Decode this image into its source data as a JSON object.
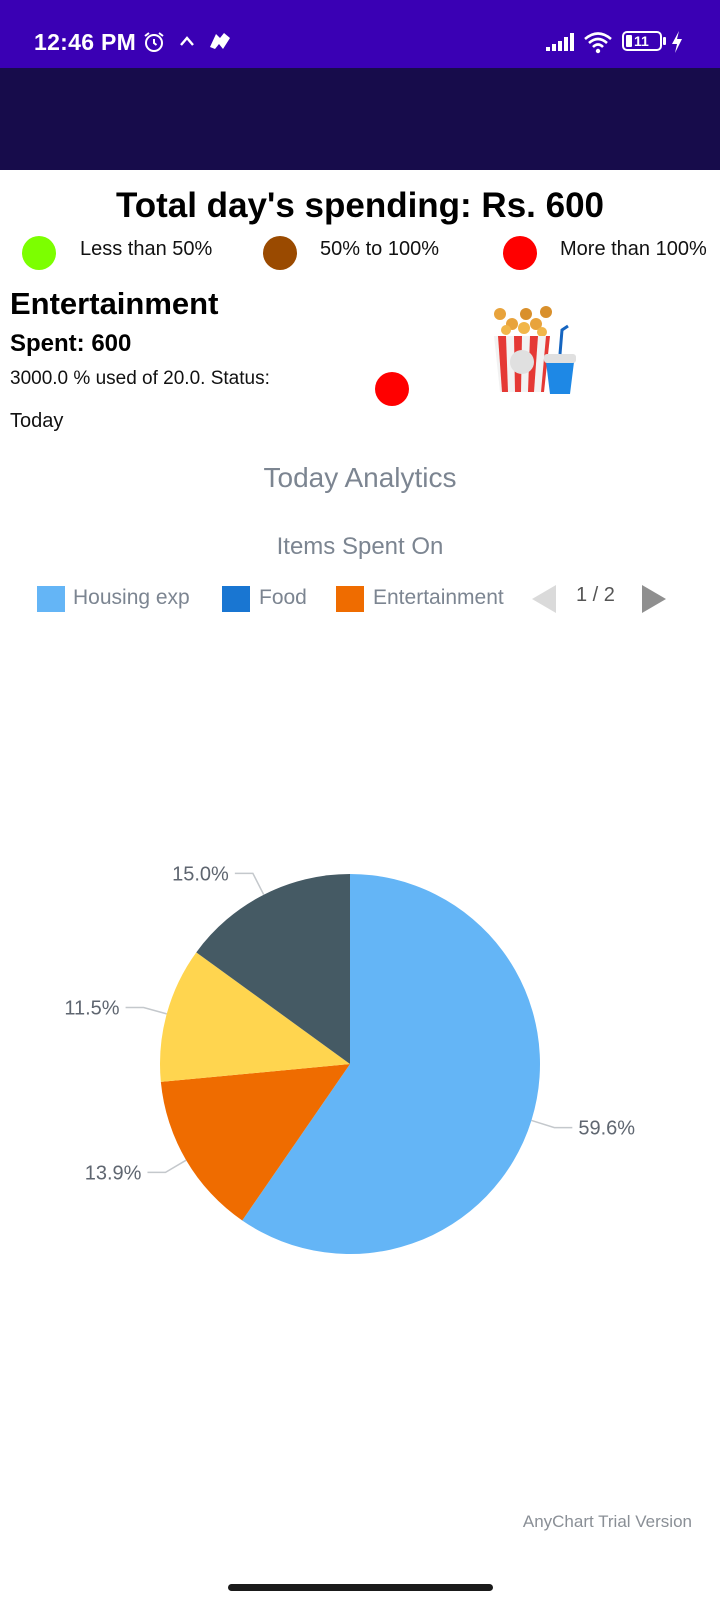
{
  "status_bar": {
    "time": "12:46 PM",
    "battery": "11",
    "bg_color": "#3a00b4"
  },
  "app_bar": {
    "bg_color": "#170c4b"
  },
  "header": {
    "total_title": "Total day's spending: Rs. 600",
    "legend": [
      {
        "label": "Less than 50%",
        "color": "#7cff00"
      },
      {
        "label": "50% to 100%",
        "color": "#9a4a00"
      },
      {
        "label": "More than 100%",
        "color": "#ff0000"
      }
    ]
  },
  "category": {
    "name": "Entertainment",
    "spent": "Spent: 600",
    "usage": "3000.0 % used of 20.0. Status:",
    "status_color": "#ff0000",
    "icon": "popcorn-icon",
    "period": "Today"
  },
  "analytics": {
    "title": "Today Analytics",
    "subtitle": "Items Spent On",
    "legend": [
      {
        "label": "Housing exp",
        "color": "#64b5f6"
      },
      {
        "label": "Food",
        "color": "#1976d2"
      },
      {
        "label": "Entertainment",
        "color": "#ef6c00"
      }
    ],
    "pager": "1 / 2",
    "watermark": "AnyChart Trial Version"
  },
  "chart_data": {
    "type": "pie",
    "title": "Items Spent On",
    "slices": [
      {
        "label": "59.6%",
        "value": 59.6,
        "color": "#64b5f6"
      },
      {
        "label": "13.9%",
        "value": 13.9,
        "color": "#ef6c00"
      },
      {
        "label": "11.5%",
        "value": 11.5,
        "color": "#ffd54f"
      },
      {
        "label": "15.0%",
        "value": 15.0,
        "color": "#455a64"
      }
    ],
    "legend_placement": "top",
    "legend_page": "1 / 2"
  }
}
